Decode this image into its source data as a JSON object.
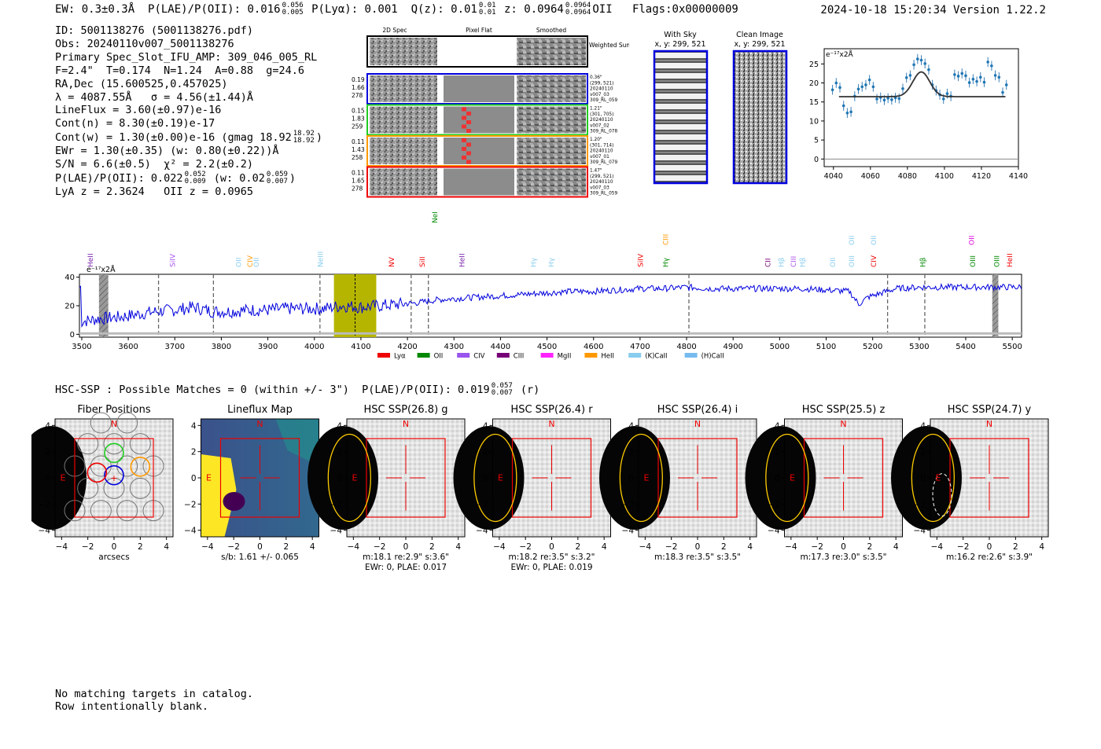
{
  "header": {
    "ew": "EW: 0.3±0.3Å",
    "plae_label": "P(LAE)/P(OII): 0.016",
    "plae_hi": "0.056",
    "plae_lo": "0.005",
    "plya": "P(Lyα): 0.001",
    "q_label": "Q(z): 0.01",
    "q_hi": "0.01",
    "q_lo": "0.01",
    "z_label": "z: 0.0964",
    "z_hi": "0.0964",
    "z_lo": "0.0964",
    "z_line": "OII",
    "flags": "Flags:0x00000009",
    "datetime": "2024-10-18 15:20:34",
    "version": "Version 1.22.2"
  },
  "info": {
    "id": "ID: 5001138276 (5001138276.pdf)",
    "obs": "Obs: 20240110v007_5001138276",
    "primary": "Primary Spec_Slot_IFU_AMP: 309_046_005_RL",
    "params": "F=2.4\"  T=0.174  N=1.24  A=0.88  g=24.6",
    "radec": "RA,Dec (15.600525,0.457025)",
    "lambda": "λ = 4087.55Å   σ = 4.56(±1.44)Å",
    "lineflux": "LineFlux = 3.60(±0.97)e-16",
    "contn": "Cont(n) = 8.30(±0.19)e-17",
    "contw": "Cont(w) = 1.30(±0.00)e-16 (gmag 18.92",
    "contw_hi": "18.92",
    "contw_lo": "18.92",
    "ewr": "EWr = 1.30(±0.35) (w: 0.80(±0.22))Å",
    "sn": "S/N = 6.6(±0.5)  χ² = 2.2(±0.2)",
    "plae2": "P(LAE)/P(OII): 0.022",
    "plae2_hi": "0.052",
    "plae2_lo": "0.009",
    "plae2_w": "(w: 0.02",
    "plae2_w_hi": "0.059",
    "plae2_w_lo": "0.007",
    "lyaz": "LyA z = 2.3624   OII z = 0.0965"
  },
  "cutouts": {
    "col_titles": [
      "2D Spec",
      "Pixel Flat",
      "Smoothed"
    ],
    "weighted_sum": "Weighted Sum",
    "rows": [
      {
        "color": "#0000dd",
        "left": [
          "0.19",
          "1.66",
          "278"
        ],
        "right": [
          "0.36\"",
          "(299, 521)",
          "20240110",
          "v007_03",
          "309_RL_059"
        ]
      },
      {
        "color": "#22cc22",
        "left": [
          "0.15",
          "1.83",
          "259"
        ],
        "right": [
          "1.21\"",
          "(301, 705)",
          "20240110",
          "v007_02",
          "309_RL_078"
        ]
      },
      {
        "color": "#ff9900",
        "left": [
          "0.11",
          "1.43",
          "258"
        ],
        "right": [
          "1.20\"",
          "(301, 714)",
          "20240110",
          "v007_01",
          "309_RL_079"
        ]
      },
      {
        "color": "#ee0000",
        "left": [
          "0.11",
          "1.65",
          "278"
        ],
        "right": [
          "1.47\"",
          "(299, 521)",
          "20240110",
          "v007_03",
          "309_RL_059"
        ]
      }
    ],
    "with_sky": "With Sky",
    "clean_image": "Clean Image",
    "xy": "x, y: 299, 521"
  },
  "zoom_chart": {
    "ylabel": "e⁻¹⁷x2Å",
    "xticks": [
      4040,
      4060,
      4080,
      4100,
      4120,
      4140
    ],
    "yticks": [
      0,
      5,
      10,
      15,
      20,
      25
    ],
    "xlim": [
      4035,
      4140
    ],
    "ylim": [
      -2,
      29
    ],
    "continuum": 16.4,
    "gauss_amp": 6.5,
    "gauss_mu": 4087.5,
    "gauss_sigma": 4.56,
    "points": [
      {
        "x": 4039.5,
        "y": 18.2,
        "e": 1.3
      },
      {
        "x": 4041.5,
        "y": 20.0,
        "e": 1.3
      },
      {
        "x": 4043.5,
        "y": 18.8,
        "e": 1.3
      },
      {
        "x": 4045.5,
        "y": 14.0,
        "e": 1.3
      },
      {
        "x": 4047.5,
        "y": 12.1,
        "e": 1.3
      },
      {
        "x": 4049.5,
        "y": 12.4,
        "e": 1.3
      },
      {
        "x": 4051.5,
        "y": 16.5,
        "e": 1.3
      },
      {
        "x": 4053.5,
        "y": 18.4,
        "e": 1.3
      },
      {
        "x": 4055.5,
        "y": 19.0,
        "e": 1.3
      },
      {
        "x": 4057.5,
        "y": 19.5,
        "e": 1.3
      },
      {
        "x": 4059.5,
        "y": 20.8,
        "e": 1.3
      },
      {
        "x": 4061.5,
        "y": 19.0,
        "e": 1.3
      },
      {
        "x": 4063.5,
        "y": 15.8,
        "e": 1.3
      },
      {
        "x": 4065.5,
        "y": 16.2,
        "e": 1.3
      },
      {
        "x": 4067.5,
        "y": 15.5,
        "e": 1.3
      },
      {
        "x": 4069.5,
        "y": 16.0,
        "e": 1.3
      },
      {
        "x": 4071.5,
        "y": 15.6,
        "e": 1.3
      },
      {
        "x": 4073.5,
        "y": 16.1,
        "e": 1.3
      },
      {
        "x": 4075.5,
        "y": 15.9,
        "e": 1.3
      },
      {
        "x": 4077.5,
        "y": 18.5,
        "e": 1.3
      },
      {
        "x": 4079.5,
        "y": 21.4,
        "e": 1.3
      },
      {
        "x": 4081.5,
        "y": 22.0,
        "e": 1.3
      },
      {
        "x": 4083.5,
        "y": 24.8,
        "e": 1.3
      },
      {
        "x": 4085.5,
        "y": 26.3,
        "e": 1.3
      },
      {
        "x": 4087.5,
        "y": 26.0,
        "e": 1.3
      },
      {
        "x": 4089.5,
        "y": 25.1,
        "e": 1.3
      },
      {
        "x": 4091.5,
        "y": 23.5,
        "e": 1.3
      },
      {
        "x": 4093.5,
        "y": 19.5,
        "e": 1.3
      },
      {
        "x": 4095.5,
        "y": 18.0,
        "e": 1.3
      },
      {
        "x": 4097.5,
        "y": 16.9,
        "e": 1.3
      },
      {
        "x": 4099.5,
        "y": 15.8,
        "e": 1.3
      },
      {
        "x": 4101.5,
        "y": 17.2,
        "e": 1.3
      },
      {
        "x": 4103.5,
        "y": 16.5,
        "e": 1.3
      },
      {
        "x": 4105.5,
        "y": 22.2,
        "e": 1.3
      },
      {
        "x": 4107.5,
        "y": 21.8,
        "e": 1.3
      },
      {
        "x": 4109.5,
        "y": 22.5,
        "e": 1.3
      },
      {
        "x": 4111.5,
        "y": 21.9,
        "e": 1.3
      },
      {
        "x": 4113.5,
        "y": 20.1,
        "e": 1.3
      },
      {
        "x": 4115.5,
        "y": 21.0,
        "e": 1.3
      },
      {
        "x": 4117.5,
        "y": 20.4,
        "e": 1.3
      },
      {
        "x": 4119.5,
        "y": 21.5,
        "e": 1.3
      },
      {
        "x": 4121.5,
        "y": 20.2,
        "e": 1.3
      },
      {
        "x": 4123.5,
        "y": 25.5,
        "e": 1.3
      },
      {
        "x": 4125.5,
        "y": 24.5,
        "e": 1.3
      },
      {
        "x": 4127.5,
        "y": 22.0,
        "e": 1.3
      },
      {
        "x": 4129.5,
        "y": 21.5,
        "e": 1.3
      },
      {
        "x": 4131.5,
        "y": 17.5,
        "e": 1.3
      },
      {
        "x": 4133.5,
        "y": 19.5,
        "e": 1.3
      }
    ]
  },
  "chart_data": {
    "type": "line",
    "title": "",
    "ylabel": "e⁻¹⁷x2Å",
    "xlim": [
      3495,
      5520
    ],
    "ylim": [
      -2,
      42
    ],
    "xticks": [
      3500,
      3600,
      3700,
      3800,
      3900,
      4000,
      4100,
      4200,
      4300,
      4400,
      4500,
      4600,
      4700,
      4800,
      4900,
      5000,
      5100,
      5200,
      5300,
      5400,
      5500
    ],
    "yticks": [
      0,
      20,
      40
    ],
    "anchors": [
      [
        3500,
        9
      ],
      [
        3540,
        11
      ],
      [
        3580,
        12
      ],
      [
        3620,
        14
      ],
      [
        3660,
        16
      ],
      [
        3700,
        17
      ],
      [
        3740,
        19
      ],
      [
        3780,
        16
      ],
      [
        3820,
        16
      ],
      [
        3860,
        17
      ],
      [
        3900,
        17
      ],
      [
        3940,
        18
      ],
      [
        3980,
        18
      ],
      [
        4020,
        18
      ],
      [
        4060,
        20
      ],
      [
        4100,
        19
      ],
      [
        4140,
        20
      ],
      [
        4180,
        21
      ],
      [
        4220,
        22
      ],
      [
        4260,
        24
      ],
      [
        4300,
        25
      ],
      [
        4350,
        26
      ],
      [
        4400,
        27
      ],
      [
        4450,
        28
      ],
      [
        4500,
        29
      ],
      [
        4550,
        30
      ],
      [
        4600,
        30
      ],
      [
        4650,
        31
      ],
      [
        4700,
        32
      ],
      [
        4750,
        32
      ],
      [
        4800,
        33
      ],
      [
        4850,
        32
      ],
      [
        4900,
        32
      ],
      [
        4950,
        32
      ],
      [
        5000,
        32
      ],
      [
        5050,
        32
      ],
      [
        5100,
        31
      ],
      [
        5150,
        30
      ],
      [
        5170,
        21
      ],
      [
        5190,
        26
      ],
      [
        5210,
        28
      ],
      [
        5250,
        32
      ],
      [
        5300,
        33
      ],
      [
        5350,
        33
      ],
      [
        5400,
        33
      ],
      [
        5450,
        33
      ],
      [
        5500,
        33
      ],
      [
        5520,
        33
      ]
    ],
    "highlight_band": [
      4042,
      4133
    ],
    "obs_line": 4087.5,
    "gray_bands": [
      [
        3537,
        3557
      ],
      [
        5457,
        5470
      ]
    ],
    "vlines": [
      3665,
      3783,
      4012,
      4208,
      4245,
      4805,
      5232,
      5312
    ],
    "line_labels": [
      {
        "x": 3524,
        "label": "HeII",
        "color": "#7722aa",
        "row": 0
      },
      {
        "x": 3700,
        "label": "SiIV",
        "color": "#aa55ee",
        "row": 0
      },
      {
        "x": 3842,
        "label": "OII",
        "color": "#88ccee",
        "row": 0
      },
      {
        "x": 3867,
        "label": "CIV",
        "color": "#ff9900",
        "row": 0
      },
      {
        "x": 3880,
        "label": "OII",
        "color": "#88ccee",
        "row": 0
      },
      {
        "x": 4018,
        "label": "NeIII",
        "color": "#88ccee",
        "row": 0
      },
      {
        "x": 4171,
        "label": "NV",
        "color": "#ee0000",
        "row": 0
      },
      {
        "x": 4237,
        "label": "SiII",
        "color": "#ee0000",
        "row": 0
      },
      {
        "x": 4264,
        "label": "NeIII",
        "color": "#008800",
        "row": 2
      },
      {
        "x": 4322,
        "label": "HeII",
        "color": "#7722aa",
        "row": 0
      },
      {
        "x": 4476,
        "label": "Hγ",
        "color": "#88ccee",
        "row": 0
      },
      {
        "x": 4514,
        "label": "Hγ",
        "color": "#88ccee",
        "row": 0
      },
      {
        "x": 4706,
        "label": "SiIV",
        "color": "#ee0000",
        "row": 0
      },
      {
        "x": 4760,
        "label": "CIII",
        "color": "#ff9900",
        "row": 1
      },
      {
        "x": 4760,
        "label": "Hγ",
        "color": "#008800",
        "row": 0
      },
      {
        "x": 4980,
        "label": "CII",
        "color": "#770077",
        "row": 0
      },
      {
        "x": 5009,
        "label": "Hβ",
        "color": "#88ccee",
        "row": 0
      },
      {
        "x": 5035,
        "label": "CIII",
        "color": "#aa55ee",
        "row": 0
      },
      {
        "x": 5054,
        "label": "Hβ",
        "color": "#88ccee",
        "row": 0
      },
      {
        "x": 5119,
        "label": "OII",
        "color": "#88ccee",
        "row": 0
      },
      {
        "x": 5160,
        "label": "OIII",
        "color": "#88ccee",
        "row": 0
      },
      {
        "x": 5160,
        "label": "OII",
        "color": "#88ccee",
        "row": 1
      },
      {
        "x": 5207,
        "label": "CIV",
        "color": "#ee0000",
        "row": 0
      },
      {
        "x": 5207,
        "label": "OII",
        "color": "#88ccee",
        "row": 1
      },
      {
        "x": 5313,
        "label": "Hβ",
        "color": "#008800",
        "row": 0
      },
      {
        "x": 5418,
        "label": "OII",
        "color": "#dd00dd",
        "row": 1
      },
      {
        "x": 5420,
        "label": "OIII",
        "color": "#008800",
        "row": 0
      },
      {
        "x": 5472,
        "label": "OIII",
        "color": "#008800",
        "row": 0
      },
      {
        "x": 5500,
        "label": "HeII",
        "color": "#ee0000",
        "row": 0
      }
    ],
    "legend": [
      {
        "label": "Lyα",
        "color": "#ee0000"
      },
      {
        "label": "OII",
        "color": "#008800"
      },
      {
        "label": "CIV",
        "color": "#9955ee"
      },
      {
        "label": "CIII",
        "color": "#770077"
      },
      {
        "label": "MgII",
        "color": "#ff22ff"
      },
      {
        "label": "HeII",
        "color": "#ff9900"
      },
      {
        "label": "(K)CaII",
        "color": "#88ccee"
      },
      {
        "label": "(H)CaII",
        "color": "#77bbee"
      }
    ]
  },
  "hsc": {
    "line": "HSC-SSP : Possible Matches = 0 (within +/- 3\")  P(LAE)/P(OII): 0.019",
    "line_hi": "0.057",
    "line_lo": "0.007",
    "line_band": "(r)",
    "axis_ticks": [
      -4,
      -2,
      0,
      2,
      4
    ],
    "north": "N",
    "east": "E",
    "panels": [
      {
        "title": "Fiber Positions",
        "caption1": "arcsecs",
        "caption2": ""
      },
      {
        "title": "Lineflux Map",
        "caption1": "s/b: 1.61 +/- 0.065",
        "caption2": ""
      },
      {
        "title": "HSC SSP(26.8) g",
        "caption1": "m:18.1  re:2.9\"  s:3.6\"",
        "caption2": "EWr: 0, PLAE: 0.017"
      },
      {
        "title": "HSC SSP(26.4) r",
        "caption1": "m:18.2  re:3.5\"  s:3.2\"",
        "caption2": "EWr: 0, PLAE: 0.019"
      },
      {
        "title": "HSC SSP(26.4) i",
        "caption1": "m:18.3  re:3.5\"  s:3.5\"",
        "caption2": ""
      },
      {
        "title": "HSC SSP(25.5) z",
        "caption1": "m:17.3  re:3.0\"  s:3.5\"",
        "caption2": ""
      },
      {
        "title": "HSC SSP(24.7) y",
        "caption1": "m:16.2  re:2.6\"  s:3.9\"",
        "caption2": ""
      }
    ]
  },
  "note": {
    "line1": "No matching targets in catalog.",
    "line2": "Row intentionally blank."
  }
}
